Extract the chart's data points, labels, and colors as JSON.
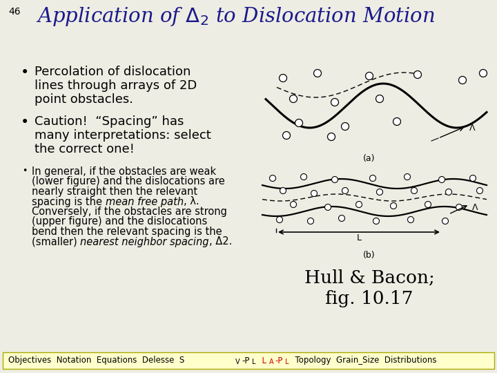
{
  "slide_number": "46",
  "background_color": "#eeede3",
  "title_color": "#1a1a8c",
  "text_color": "#000000",
  "footer_bg": "#ffffcc",
  "footer_border": "#aaaa00",
  "bullet1_lines": [
    "Percolation of dislocation",
    "lines through arrays of 2D",
    "point obstacles."
  ],
  "bullet2_lines": [
    "Caution!  “Spacing” has",
    "many interpretations: select",
    "the correct one!"
  ],
  "bullet3_lines": [
    "In general, if the obstacles are weak",
    "(lower figure) and the dislocations are",
    "nearly straight then the relevant",
    "spacing is the ~mean free path~, λ.",
    "Conversely, if the obstacles are strong",
    "(upper figure) and the dislocations",
    "bend then the relevant spacing is the",
    "(smaller) ~nearest neighbor spacing~, Δ2."
  ],
  "caption_line1": "Hull & Bacon;",
  "caption_line2": "fig. 10.17",
  "footer_parts": [
    {
      "text": "Objectives  Notation  Equations  Delesse  S",
      "color": "#000000"
    },
    {
      "text": "V",
      "color": "#000000",
      "sub": true
    },
    {
      "text": "-P",
      "color": "#000000"
    },
    {
      "text": "L",
      "color": "#000000",
      "sub": true
    },
    {
      "text": "  L",
      "color": "#cc0000"
    },
    {
      "text": "A",
      "color": "#cc0000",
      "sub": true
    },
    {
      "text": "-P",
      "color": "#cc0000"
    },
    {
      "text": "L",
      "color": "#cc0000",
      "sub": true
    },
    {
      "text": "  Topology  Grain_Size  Distributions",
      "color": "#000000"
    }
  ]
}
